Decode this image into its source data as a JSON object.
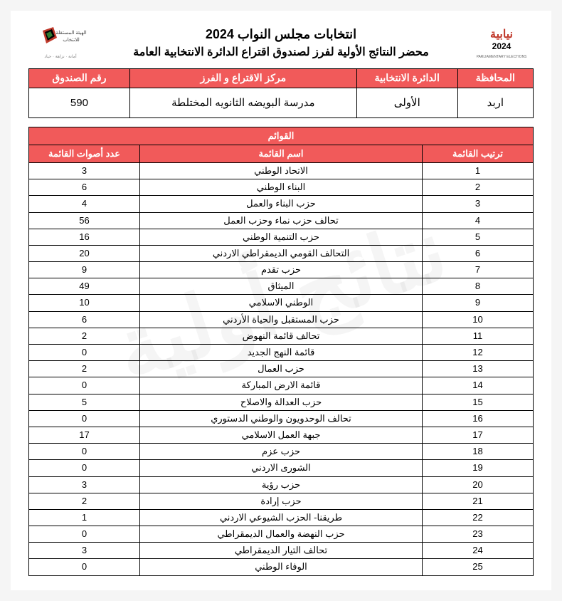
{
  "header": {
    "title_main": "انتخابات مجلس النواب 2024",
    "title_sub": "محضر النتائج الأولية لفرز لصندوق اقتراع الدائرة الانتخابية العامة"
  },
  "info_headers": {
    "governorate": "المحافظة",
    "district": "الدائرة الانتخابية",
    "center": "مركز الاقتراع و الفرز",
    "box": "رقم الصندوق"
  },
  "info_values": {
    "governorate": "اربد",
    "district": "الأولى",
    "center": "مدرسة البويضه الثانويه المختلطة",
    "box": "590"
  },
  "lists_section_title": "القوائم",
  "lists_headers": {
    "rank": "ترتيب القائمة",
    "name": "اسم القائمة",
    "votes": "عدد أصوات القائمة"
  },
  "lists": [
    {
      "rank": "1",
      "name": "الاتحاد الوطني",
      "votes": "3"
    },
    {
      "rank": "2",
      "name": "البناء الوطني",
      "votes": "6"
    },
    {
      "rank": "3",
      "name": "حزب البناء والعمل",
      "votes": "4"
    },
    {
      "rank": "4",
      "name": "تحالف حزب نماء وحزب العمل",
      "votes": "56"
    },
    {
      "rank": "5",
      "name": "حزب التنمية الوطني",
      "votes": "16"
    },
    {
      "rank": "6",
      "name": "التحالف القومي الديمقراطي الاردني",
      "votes": "20"
    },
    {
      "rank": "7",
      "name": "حزب تقدم",
      "votes": "9"
    },
    {
      "rank": "8",
      "name": "الميثاق",
      "votes": "49"
    },
    {
      "rank": "9",
      "name": "الوطني الاسلامي",
      "votes": "10"
    },
    {
      "rank": "10",
      "name": "حزب المستقبل والحياة الأردني",
      "votes": "6"
    },
    {
      "rank": "11",
      "name": "تحالف قائمة النهوض",
      "votes": "2"
    },
    {
      "rank": "12",
      "name": "قائمة النهج الجديد",
      "votes": "0"
    },
    {
      "rank": "13",
      "name": "حزب العمال",
      "votes": "2"
    },
    {
      "rank": "14",
      "name": "قائمة الارض المباركة",
      "votes": "0"
    },
    {
      "rank": "15",
      "name": "حزب العدالة والاصلاح",
      "votes": "5"
    },
    {
      "rank": "16",
      "name": "تحالف الوحدويون والوطني الدستوري",
      "votes": "0"
    },
    {
      "rank": "17",
      "name": "جبهة العمل الاسلامي",
      "votes": "17"
    },
    {
      "rank": "18",
      "name": "حزب عزم",
      "votes": "0"
    },
    {
      "rank": "19",
      "name": "الشورى الاردني",
      "votes": "0"
    },
    {
      "rank": "20",
      "name": "حزب رؤية",
      "votes": "3"
    },
    {
      "rank": "21",
      "name": "حزب إرادة",
      "votes": "2"
    },
    {
      "rank": "22",
      "name": "طريقنا- الحزب الشيوعي الاردني",
      "votes": "1"
    },
    {
      "rank": "23",
      "name": "حزب النهضة والعمال الديمقراطي",
      "votes": "0"
    },
    {
      "rank": "24",
      "name": "تحالف التيار الديمقراطي",
      "votes": "3"
    },
    {
      "rank": "25",
      "name": "الوفاء الوطني",
      "votes": "0"
    }
  ],
  "watermark": "نتائج أولية",
  "colors": {
    "header_bg": "#f15a5a",
    "header_fg": "#ffffff",
    "border": "#000000"
  }
}
